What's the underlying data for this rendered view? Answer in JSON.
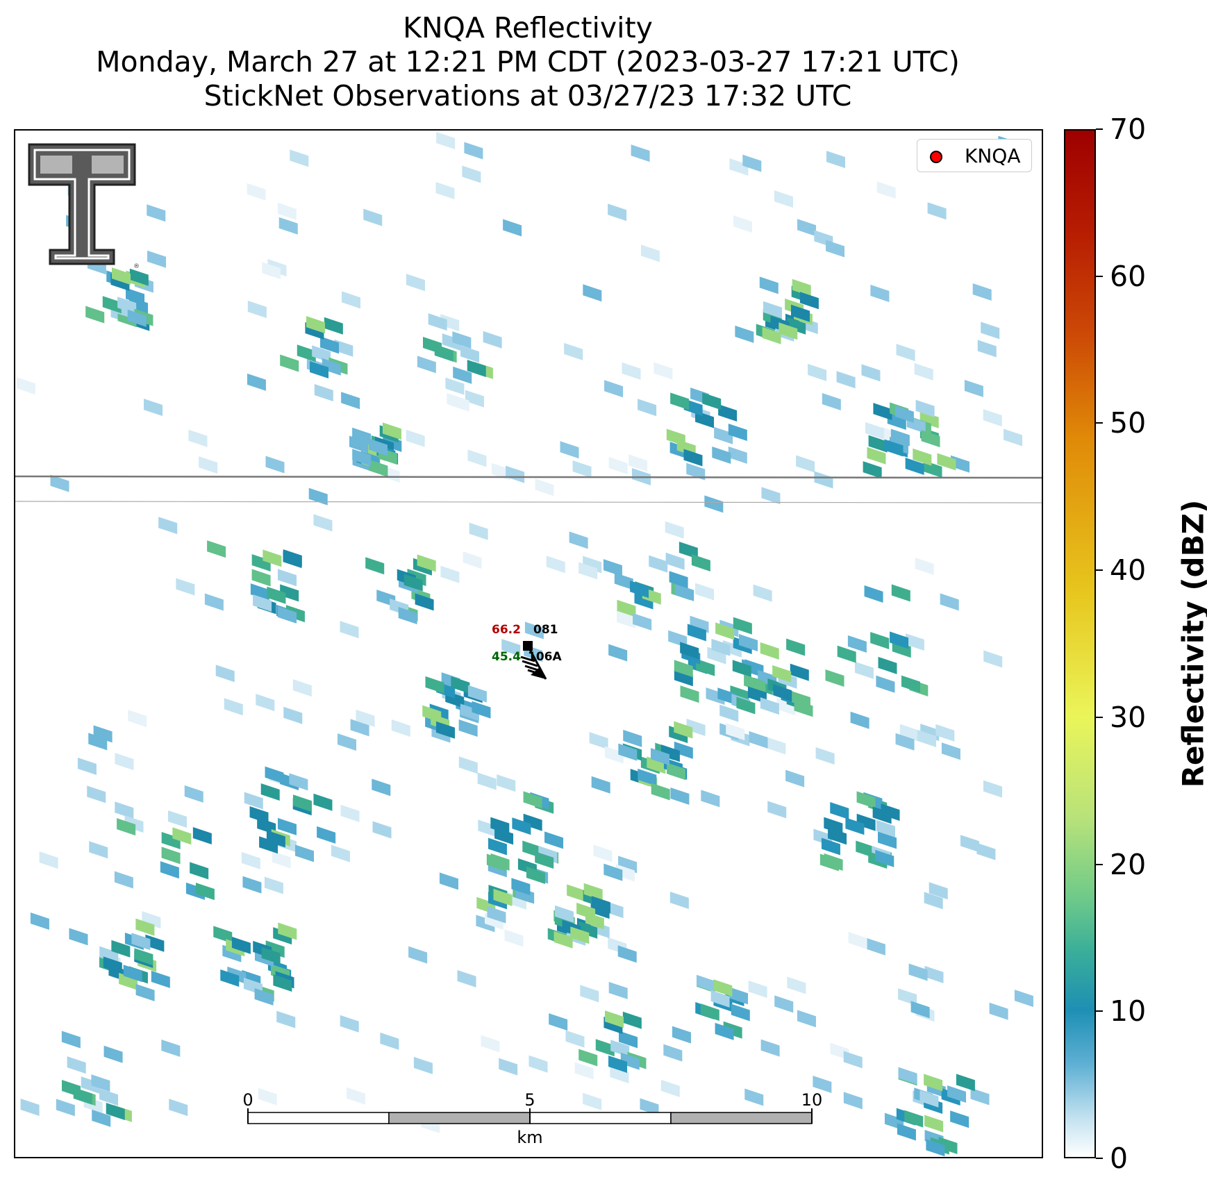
{
  "title": {
    "line1": "KNQA Reflectivity",
    "line2": "Monday, March 27 at 12:21 PM CDT (2023-03-27 17:21 UTC)",
    "line3": "StickNet Observations at 03/27/23 17:32 UTC"
  },
  "legend": {
    "label": "KNQA",
    "marker_color": "#ff0000"
  },
  "station": {
    "temperature": "66.2",
    "dewpoint": "45.4",
    "id_top": "081",
    "id_bottom": "106A",
    "temperature_color": "#b00000",
    "dewpoint_color": "#006400"
  },
  "scalebar": {
    "ticks": [
      "0",
      "5",
      "10"
    ],
    "unit": "km"
  },
  "colorbar": {
    "label": "Reflectivity (dBZ)",
    "min": 0,
    "max": 70,
    "ticks": [
      "0",
      "10",
      "20",
      "30",
      "40",
      "50",
      "60",
      "70"
    ],
    "colors": [
      "#ffffff",
      "#bfe0ef",
      "#5fb0d4",
      "#1e8fb4",
      "#3aae9a",
      "#6cc98a",
      "#eaf55a",
      "#e7c61e",
      "#e08a08",
      "#cc4a06",
      "#9e0000"
    ]
  },
  "logo": {
    "text": "T"
  }
}
